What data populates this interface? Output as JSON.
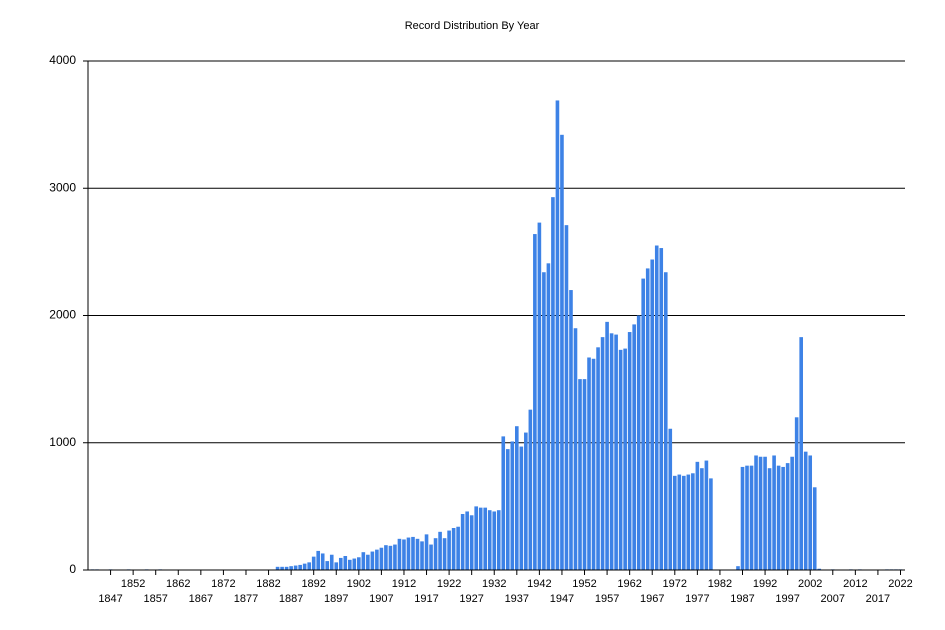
{
  "chart_data": {
    "type": "bar",
    "title": "Record Distribution By Year",
    "color": "#3d82e6",
    "grid": true,
    "x": [
      1843,
      1844,
      1845,
      1846,
      1847,
      1848,
      1849,
      1850,
      1851,
      1852,
      1853,
      1854,
      1855,
      1856,
      1857,
      1858,
      1859,
      1860,
      1861,
      1862,
      1863,
      1864,
      1865,
      1866,
      1867,
      1868,
      1869,
      1870,
      1871,
      1872,
      1873,
      1874,
      1875,
      1876,
      1877,
      1878,
      1879,
      1880,
      1881,
      1882,
      1883,
      1884,
      1885,
      1886,
      1887,
      1888,
      1889,
      1890,
      1891,
      1892,
      1893,
      1894,
      1895,
      1896,
      1897,
      1898,
      1899,
      1900,
      1901,
      1902,
      1903,
      1904,
      1905,
      1906,
      1907,
      1908,
      1909,
      1910,
      1911,
      1912,
      1913,
      1914,
      1915,
      1916,
      1917,
      1918,
      1919,
      1920,
      1921,
      1922,
      1923,
      1924,
      1925,
      1926,
      1927,
      1928,
      1929,
      1930,
      1931,
      1932,
      1933,
      1934,
      1935,
      1936,
      1937,
      1938,
      1939,
      1940,
      1941,
      1942,
      1943,
      1944,
      1945,
      1946,
      1947,
      1948,
      1949,
      1950,
      1951,
      1952,
      1953,
      1954,
      1955,
      1956,
      1957,
      1958,
      1959,
      1960,
      1961,
      1962,
      1963,
      1964,
      1965,
      1966,
      1967,
      1968,
      1969,
      1970,
      1971,
      1972,
      1973,
      1974,
      1975,
      1976,
      1977,
      1978,
      1979,
      1980,
      1981,
      1982,
      1983,
      1984,
      1985,
      1986,
      1987,
      1988,
      1989,
      1990,
      1991,
      1992,
      1993,
      1994,
      1995,
      1996,
      1997,
      1998,
      1999,
      2000,
      2001,
      2002,
      2003,
      2004,
      2005,
      2006,
      2007,
      2008,
      2009,
      2010,
      2011,
      2012,
      2013,
      2014,
      2015,
      2016,
      2017,
      2018,
      2019,
      2020,
      2021,
      2022
    ],
    "values": [
      5,
      5,
      0,
      0,
      5,
      0,
      0,
      0,
      5,
      0,
      0,
      0,
      5,
      0,
      0,
      5,
      0,
      0,
      0,
      0,
      0,
      0,
      0,
      0,
      0,
      0,
      0,
      0,
      0,
      0,
      0,
      0,
      0,
      0,
      0,
      0,
      0,
      0,
      0,
      0,
      0,
      25,
      25,
      25,
      30,
      35,
      40,
      50,
      60,
      105,
      150,
      130,
      70,
      120,
      60,
      95,
      110,
      80,
      90,
      100,
      140,
      120,
      145,
      160,
      175,
      195,
      190,
      200,
      245,
      240,
      255,
      260,
      245,
      225,
      280,
      200,
      250,
      300,
      250,
      310,
      330,
      340,
      440,
      460,
      430,
      500,
      490,
      490,
      470,
      460,
      470,
      1050,
      950,
      1010,
      1130,
      970,
      1080,
      1260,
      2640,
      2730,
      2340,
      2410,
      2930,
      3690,
      3420,
      2710,
      2200,
      1900,
      1500,
      1500,
      1670,
      1660,
      1750,
      1830,
      1950,
      1860,
      1850,
      1730,
      1740,
      1870,
      1930,
      2000,
      2290,
      2370,
      2440,
      2550,
      2530,
      2340,
      1110,
      740,
      750,
      740,
      750,
      760,
      850,
      800,
      860,
      720,
      0,
      0,
      0,
      0,
      0,
      30,
      810,
      820,
      820,
      900,
      890,
      890,
      800,
      900,
      820,
      810,
      840,
      890,
      1200,
      1830,
      930,
      900,
      650,
      10,
      0,
      0,
      5,
      0,
      0,
      0,
      5,
      0,
      5,
      0,
      0,
      0,
      0,
      0,
      5,
      5,
      5,
      5
    ],
    "xlim": [
      1842,
      2023
    ],
    "xticks": [
      1847,
      1852,
      1857,
      1862,
      1867,
      1872,
      1877,
      1882,
      1887,
      1892,
      1897,
      1902,
      1907,
      1912,
      1917,
      1922,
      1927,
      1932,
      1937,
      1942,
      1947,
      1952,
      1957,
      1962,
      1967,
      1972,
      1977,
      1982,
      1987,
      1992,
      1997,
      2002,
      2007,
      2012,
      2017,
      2022
    ],
    "ylim": [
      0,
      4000
    ],
    "yticks": [
      0,
      1000,
      2000,
      3000,
      4000
    ]
  }
}
